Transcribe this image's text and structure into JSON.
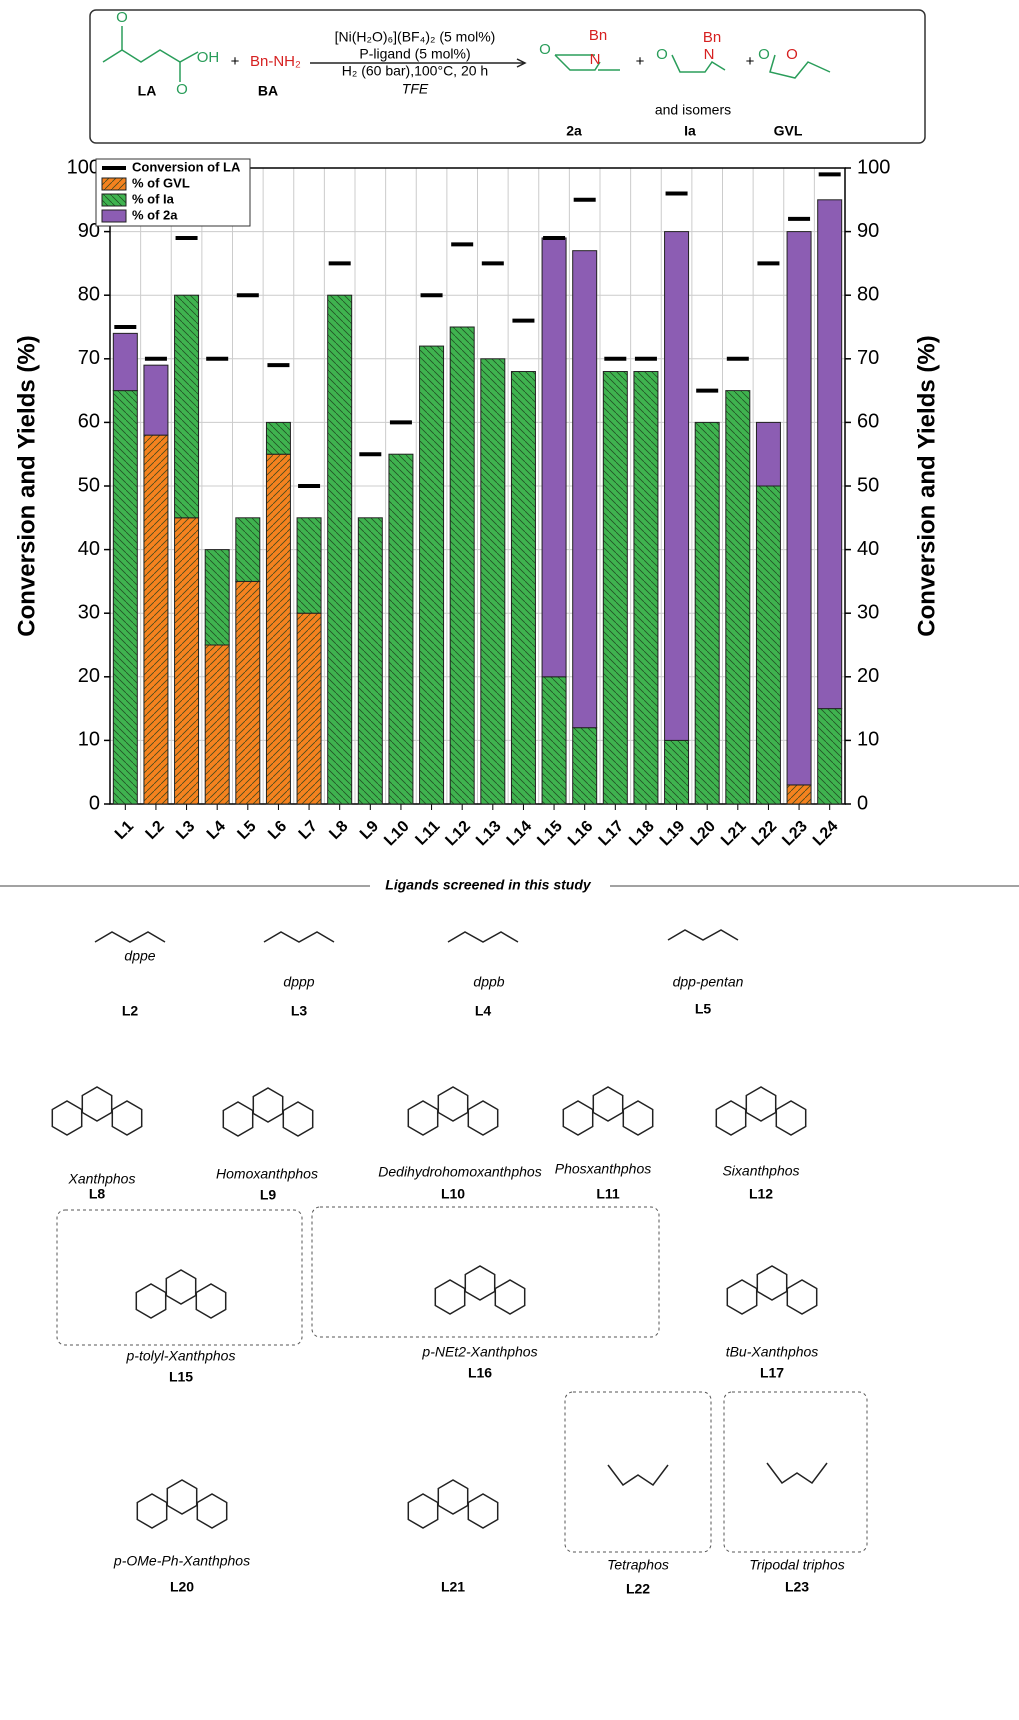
{
  "scheme": {
    "reactant1": "LA",
    "reactant2_formula": "Bn-NH₂",
    "reactant2": "BA",
    "plus": "+",
    "conditions": [
      "[Ni(H₂O)₆](BF₄)₂ (5 mol%)",
      "P-ligand (5 mol%)",
      "H₂ (60 bar),100°C, 20 h",
      "TFE"
    ],
    "products": [
      "2a",
      "Ia",
      "GVL"
    ],
    "isomers_note": "and isomers",
    "atom_labels": [
      "O",
      "OH",
      "O",
      "O",
      "N",
      "Bn",
      "O",
      "N",
      "Bn",
      "O",
      "O"
    ]
  },
  "chart_data": {
    "type": "bar",
    "stacked": true,
    "ylabel": "Conversion and Yields (%)",
    "y2label": "Conversion and Yields (%)",
    "categories": [
      "L1",
      "L2",
      "L3",
      "L4",
      "L5",
      "L6",
      "L7",
      "L8",
      "L9",
      "L10",
      "L11",
      "L12",
      "L13",
      "L14",
      "L15",
      "L16",
      "L17",
      "L18",
      "L19",
      "L20",
      "L21",
      "L22",
      "L23",
      "L24"
    ],
    "series": [
      {
        "name": "% of GVL",
        "color": "#f5821f",
        "values": [
          0,
          58,
          45,
          25,
          35,
          55,
          30,
          0,
          0,
          0,
          0,
          0,
          0,
          0,
          0,
          0,
          0,
          0,
          0,
          0,
          0,
          0,
          3,
          0
        ]
      },
      {
        "name": "% of Ia",
        "color": "#3fb34f",
        "values": [
          65,
          0,
          35,
          15,
          10,
          5,
          15,
          80,
          45,
          55,
          72,
          75,
          70,
          68,
          20,
          12,
          68,
          68,
          10,
          60,
          65,
          50,
          0,
          15
        ]
      },
      {
        "name": "% of 2a",
        "color": "#8c5db3",
        "values": [
          9,
          11,
          0,
          0,
          0,
          0,
          0,
          0,
          0,
          0,
          0,
          0,
          0,
          0,
          69,
          75,
          0,
          0,
          80,
          0,
          0,
          10,
          87,
          80
        ]
      }
    ],
    "conversion": {
      "name": "Conversion of LA",
      "color": "#000000",
      "values": [
        75,
        70,
        89,
        70,
        80,
        69,
        50,
        85,
        55,
        60,
        80,
        88,
        85,
        76,
        89,
        95,
        70,
        70,
        96,
        65,
        70,
        85,
        92,
        99
      ]
    },
    "ylim": [
      0,
      100
    ],
    "yticks": [
      0,
      10,
      20,
      30,
      40,
      50,
      60,
      70,
      80,
      90,
      100
    ],
    "y2lim": [
      0,
      100
    ],
    "y2ticks": [
      0,
      10,
      20,
      30,
      40,
      50,
      60,
      70,
      80,
      90,
      100
    ],
    "grid": true,
    "legend": "upper left"
  },
  "ligands": {
    "title": "Ligands screened in this study",
    "items": [
      {
        "label": "L2",
        "name": "dppe"
      },
      {
        "label": "L3",
        "name": "dppp"
      },
      {
        "label": "L4",
        "name": "dppb"
      },
      {
        "label": "L5",
        "name": "dpp-pentan"
      },
      {
        "label": "L8",
        "name": "Xanthphos"
      },
      {
        "label": "L9",
        "name": "Homoxanthphos"
      },
      {
        "label": "L10",
        "name": "Dedihydrohomoxanthphos"
      },
      {
        "label": "L11",
        "name": "Phosxanthphos"
      },
      {
        "label": "L12",
        "name": "Sixanthphos"
      },
      {
        "label": "L15",
        "name": "p-tolyl-Xanthphos"
      },
      {
        "label": "L16",
        "name": "p-NEt2-Xanthphos"
      },
      {
        "label": "L17",
        "name": "tBu-Xanthphos"
      },
      {
        "label": "L20",
        "name": "p-OMe-Ph-Xanthphos"
      },
      {
        "label": "L21"
      },
      {
        "label": "L22",
        "name": "Tetraphos"
      },
      {
        "label": "L23",
        "name": "Tripodal triphos"
      }
    ]
  }
}
